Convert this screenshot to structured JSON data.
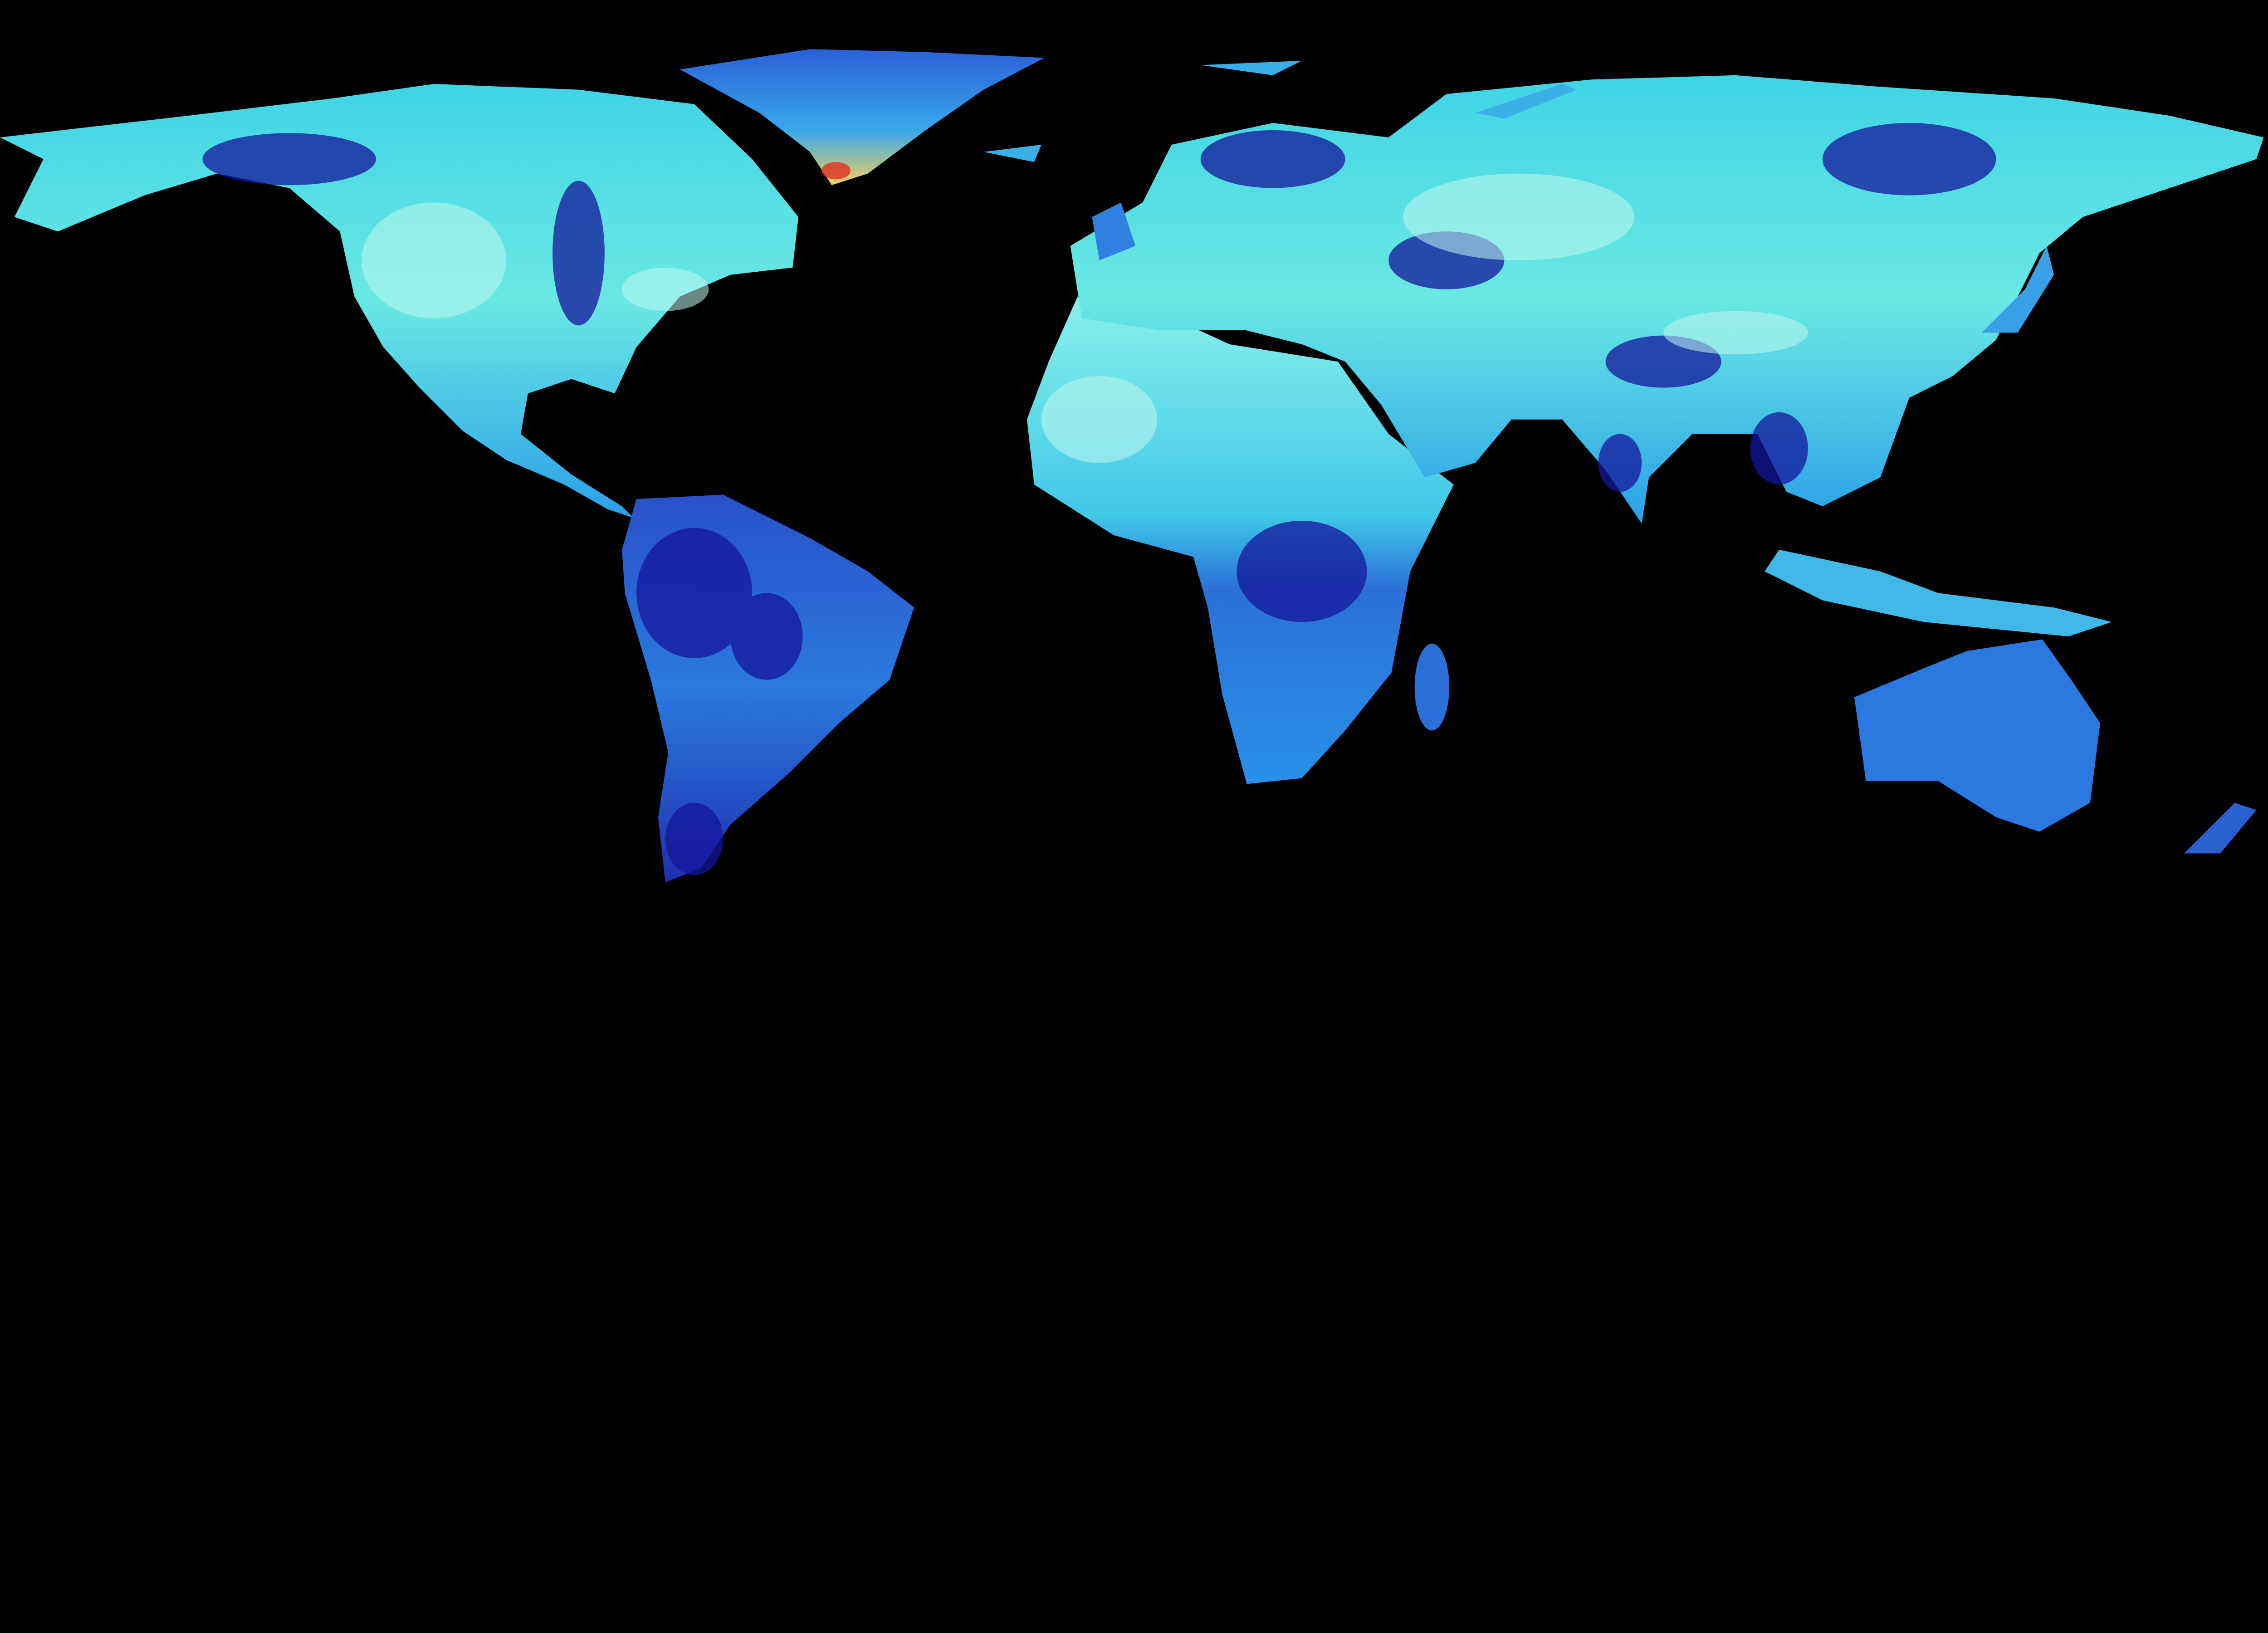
{
  "map": {
    "projection": "equirectangular",
    "extent": {
      "lon": [
        -180,
        180
      ],
      "lat": [
        -90,
        90
      ]
    },
    "background_color": "#000000",
    "ocean_color": "#000000",
    "colormap": {
      "name": "blue-cyan-yellow-red",
      "stops": [
        "#10108a",
        "#1a3fd0",
        "#2a8fe8",
        "#46d8e6",
        "#b8f8f0",
        "#f4e060",
        "#e03020"
      ]
    },
    "colors": {
      "low": "#10108a",
      "mid": "#2a8fe8",
      "high": "#5fe6e6",
      "peak": "#e03020"
    }
  }
}
